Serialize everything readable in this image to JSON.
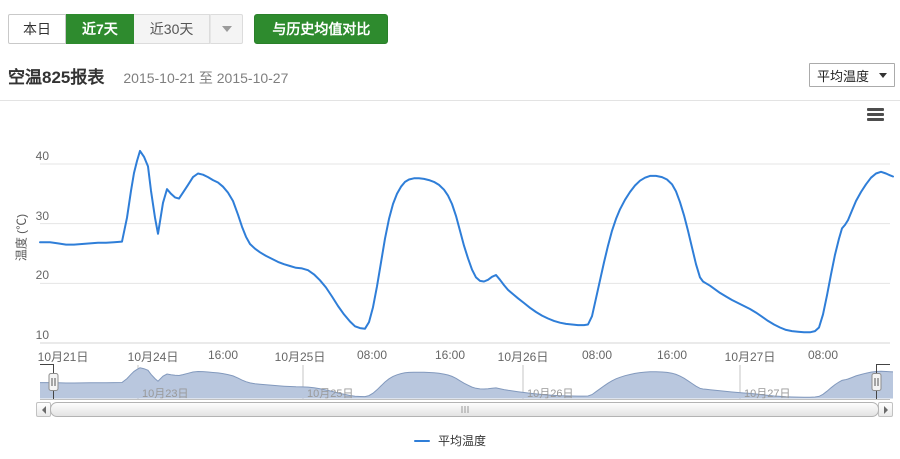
{
  "toolbar": {
    "today_label": "本日",
    "last7_label": "近7天",
    "last30_label": "近30天",
    "compare_label": "与历史均值对比",
    "active_range": "近7天"
  },
  "header": {
    "title": "空温825报表",
    "date_range": "2015-10-21 至 2015-10-27",
    "metric_select_value": "平均温度"
  },
  "colors": {
    "accent_green": "#2e8b2e",
    "line_blue": "#2f7ed8",
    "navigator_fill": "#b9c7de",
    "navigator_line": "#8299bd",
    "grid_line": "#e4e4e4",
    "axis_label": "#666666",
    "navigator_outline": "#444444"
  },
  "chart_data": {
    "type": "line",
    "title": "",
    "legend": {
      "label": "平均温度",
      "position": "bottom-center"
    },
    "yAxis": {
      "title": "温度 (℃)",
      "min": 10,
      "max": 43,
      "ticks": [
        10,
        20,
        30,
        40
      ],
      "grid": true
    },
    "xAxis": {
      "note": "ordinal datetime axis, gaps compressed; px = horizontal position 40-893",
      "ticks": [
        {
          "label": "10月21日",
          "px": 63
        },
        {
          "label": "10月24日",
          "px": 153
        },
        {
          "label": "16:00",
          "px": 223
        },
        {
          "label": "10月25日",
          "px": 300
        },
        {
          "label": "08:00",
          "px": 372
        },
        {
          "label": "16:00",
          "px": 450
        },
        {
          "label": "10月26日",
          "px": 523
        },
        {
          "label": "08:00",
          "px": 597
        },
        {
          "label": "16:00",
          "px": 672
        },
        {
          "label": "10月27日",
          "px": 750
        },
        {
          "label": "08:00",
          "px": 823
        }
      ]
    },
    "navigator": {
      "ticks": [
        {
          "label": "10月23日",
          "px": 138
        },
        {
          "label": "10月25日",
          "px": 303
        },
        {
          "label": "10月26日",
          "px": 523
        },
        {
          "label": "10月27日",
          "px": 740
        }
      ],
      "range_selected": "full"
    },
    "series": [
      {
        "name": "平均温度",
        "color": "#2f7ed8",
        "points": [
          [
            40,
            26.9
          ],
          [
            50,
            26.9
          ],
          [
            58,
            26.7
          ],
          [
            66,
            26.5
          ],
          [
            74,
            26.5
          ],
          [
            82,
            26.6
          ],
          [
            90,
            26.7
          ],
          [
            98,
            26.8
          ],
          [
            106,
            26.8
          ],
          [
            114,
            26.9
          ],
          [
            122,
            27
          ],
          [
            127,
            31
          ],
          [
            131,
            35.5
          ],
          [
            134,
            38.5
          ],
          [
            137,
            40.5
          ],
          [
            140,
            42.2
          ],
          [
            144,
            41.2
          ],
          [
            148,
            39.6
          ],
          [
            151,
            35.5
          ],
          [
            155,
            31
          ],
          [
            158,
            28.3
          ],
          [
            163,
            33.5
          ],
          [
            167,
            35.8
          ],
          [
            171,
            35
          ],
          [
            175,
            34.4
          ],
          [
            179,
            34.2
          ],
          [
            183,
            35.2
          ],
          [
            188,
            36.5
          ],
          [
            193,
            37.8
          ],
          [
            198,
            38.4
          ],
          [
            203,
            38.2
          ],
          [
            208,
            37.8
          ],
          [
            213,
            37.3
          ],
          [
            218,
            36.9
          ],
          [
            223,
            36.2
          ],
          [
            228,
            35.2
          ],
          [
            233,
            33.8
          ],
          [
            238,
            31.5
          ],
          [
            242,
            29.5
          ],
          [
            246,
            27.8
          ],
          [
            250,
            26.6
          ],
          [
            255,
            25.8
          ],
          [
            260,
            25.2
          ],
          [
            266,
            24.6
          ],
          [
            272,
            24.1
          ],
          [
            278,
            23.6
          ],
          [
            284,
            23.2
          ],
          [
            290,
            22.9
          ],
          [
            296,
            22.6
          ],
          [
            302,
            22.5
          ],
          [
            308,
            22.2
          ],
          [
            314,
            21.5
          ],
          [
            320,
            20.5
          ],
          [
            326,
            19.3
          ],
          [
            332,
            17.8
          ],
          [
            338,
            16.2
          ],
          [
            344,
            14.8
          ],
          [
            350,
            13.6
          ],
          [
            355,
            12.8
          ],
          [
            360,
            12.5
          ],
          [
            365,
            12.4
          ],
          [
            369,
            13.5
          ],
          [
            373,
            16
          ],
          [
            377,
            19.5
          ],
          [
            381,
            23.5
          ],
          [
            385,
            27.5
          ],
          [
            389,
            30.8
          ],
          [
            393,
            33.3
          ],
          [
            397,
            35
          ],
          [
            401,
            36.2
          ],
          [
            405,
            37
          ],
          [
            409,
            37.4
          ],
          [
            414,
            37.6
          ],
          [
            419,
            37.6
          ],
          [
            424,
            37.5
          ],
          [
            429,
            37.3
          ],
          [
            434,
            37
          ],
          [
            439,
            36.5
          ],
          [
            444,
            35.7
          ],
          [
            448,
            34.7
          ],
          [
            452,
            33.3
          ],
          [
            456,
            31.3
          ],
          [
            460,
            28.8
          ],
          [
            464,
            26.3
          ],
          [
            468,
            24.2
          ],
          [
            472,
            22.3
          ],
          [
            476,
            21
          ],
          [
            480,
            20.4
          ],
          [
            484,
            20.3
          ],
          [
            488,
            20.6
          ],
          [
            492,
            21.1
          ],
          [
            496,
            21.4
          ],
          [
            500,
            20.6
          ],
          [
            504,
            19.7
          ],
          [
            508,
            18.9
          ],
          [
            513,
            18.2
          ],
          [
            518,
            17.5
          ],
          [
            524,
            16.7
          ],
          [
            530,
            15.9
          ],
          [
            536,
            15.2
          ],
          [
            542,
            14.6
          ],
          [
            548,
            14.1
          ],
          [
            554,
            13.7
          ],
          [
            560,
            13.4
          ],
          [
            566,
            13.2
          ],
          [
            572,
            13.1
          ],
          [
            578,
            13
          ],
          [
            584,
            13
          ],
          [
            588,
            13.1
          ],
          [
            592,
            14.5
          ],
          [
            596,
            17.5
          ],
          [
            600,
            20.5
          ],
          [
            604,
            23.5
          ],
          [
            608,
            26.3
          ],
          [
            612,
            28.8
          ],
          [
            616,
            30.8
          ],
          [
            620,
            32.4
          ],
          [
            625,
            34
          ],
          [
            630,
            35.3
          ],
          [
            635,
            36.4
          ],
          [
            640,
            37.2
          ],
          [
            645,
            37.7
          ],
          [
            650,
            38
          ],
          [
            656,
            38
          ],
          [
            662,
            37.8
          ],
          [
            667,
            37.4
          ],
          [
            672,
            36.6
          ],
          [
            676,
            35.4
          ],
          [
            680,
            33.6
          ],
          [
            684,
            31.4
          ],
          [
            688,
            28.8
          ],
          [
            692,
            26
          ],
          [
            696,
            23.2
          ],
          [
            700,
            21
          ],
          [
            703,
            20.3
          ],
          [
            706,
            20
          ],
          [
            710,
            19.6
          ],
          [
            715,
            19
          ],
          [
            720,
            18.4
          ],
          [
            726,
            17.8
          ],
          [
            732,
            17.2
          ],
          [
            738,
            16.7
          ],
          [
            744,
            16.2
          ],
          [
            750,
            15.7
          ],
          [
            756,
            15.1
          ],
          [
            762,
            14.4
          ],
          [
            768,
            13.7
          ],
          [
            774,
            13.1
          ],
          [
            780,
            12.6
          ],
          [
            786,
            12.2
          ],
          [
            792,
            12
          ],
          [
            798,
            11.9
          ],
          [
            804,
            11.8
          ],
          [
            810,
            11.8
          ],
          [
            815,
            12
          ],
          [
            819,
            12.6
          ],
          [
            823,
            14.8
          ],
          [
            827,
            18
          ],
          [
            831,
            21.5
          ],
          [
            835,
            24.8
          ],
          [
            839,
            27.5
          ],
          [
            842,
            29.2
          ],
          [
            845,
            29.8
          ],
          [
            848,
            30.6
          ],
          [
            852,
            32.2
          ],
          [
            856,
            33.8
          ],
          [
            861,
            35.3
          ],
          [
            866,
            36.6
          ],
          [
            871,
            37.7
          ],
          [
            876,
            38.4
          ],
          [
            881,
            38.7
          ],
          [
            886,
            38.4
          ],
          [
            890,
            38.1
          ],
          [
            893,
            37.9
          ]
        ]
      }
    ]
  }
}
